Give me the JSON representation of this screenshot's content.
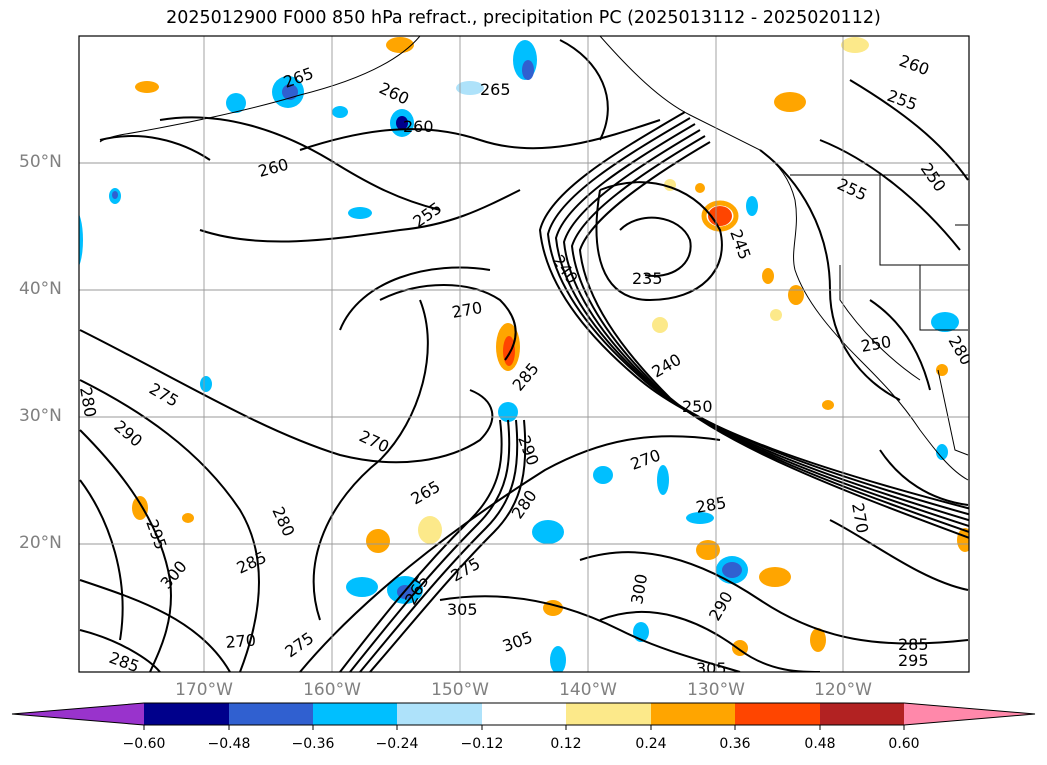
{
  "title": "2025012900 F000 850 hPa refract., precipitation PC (2025013112 - 2025020112)",
  "map": {
    "region": "North-East Pacific / western North America",
    "lat_labels": [
      "50°N",
      "40°N",
      "30°N",
      "20°N"
    ],
    "lon_labels": [
      "170°W",
      "160°W",
      "150°W",
      "140°W",
      "130°W",
      "120°W"
    ],
    "contour_labels": [
      "265",
      "260",
      "265",
      "260",
      "260",
      "260",
      "255",
      "255",
      "250",
      "255",
      "245",
      "240",
      "235",
      "270",
      "285",
      "240",
      "250",
      "275",
      "290",
      "270",
      "290",
      "270",
      "280",
      "265",
      "280",
      "270",
      "285",
      "295",
      "300",
      "285",
      "285",
      "275",
      "305",
      "270",
      "275",
      "305",
      "300",
      "290",
      "305",
      "285",
      "295",
      "280",
      "250",
      "265",
      "280"
    ],
    "contour_interval_note": "refractivity contours (N-units)",
    "shading_variable": "precipitation PC"
  },
  "colorbar": {
    "tick_labels": [
      "−0.60",
      "−0.48",
      "−0.36",
      "−0.24",
      "−0.12",
      "0.12",
      "0.24",
      "0.36",
      "0.48",
      "0.60"
    ],
    "colors": [
      "#9933cc",
      "#00008b",
      "#3060d0",
      "#00bfff",
      "#aee2fa",
      "#ffffff",
      "#fce98a",
      "#ffa500",
      "#ff4500",
      "#b22222",
      "#ff88aa"
    ]
  }
}
